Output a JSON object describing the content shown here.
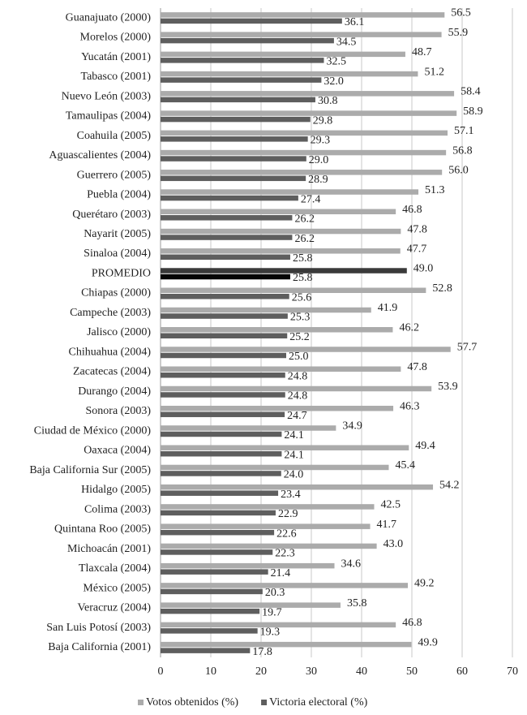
{
  "chart_data": {
    "type": "hbar",
    "categories": [
      "Guanajuato (2000)",
      "Morelos (2000)",
      "Yucatán (2001)",
      "Tabasco (2001)",
      "Nuevo León (2003)",
      "Tamaulipas (2004)",
      "Coahuila (2005)",
      "Aguascalientes (2004)",
      "Guerrero (2005)",
      "Puebla (2004)",
      "Querétaro (2003)",
      "Nayarit (2005)",
      "Sinaloa (2004)",
      "PROMEDIO",
      "Chiapas (2000)",
      "Campeche (2003)",
      "Jalisco (2000)",
      "Chihuahua (2004)",
      "Zacatecas (2004)",
      "Durango (2004)",
      "Sonora (2003)",
      "Ciudad de México (2000)",
      "Oaxaca (2004)",
      "Baja California Sur (2005)",
      "Hidalgo (2005)",
      "Colima (2003)",
      "Quintana Roo (2005)",
      "Michoacán (2001)",
      "Tlaxcala (2004)",
      "México (2005)",
      "Veracruz (2004)",
      "San Luis Potosí (2003)",
      "Baja California (2001)"
    ],
    "series": [
      {
        "name": "Votos obtenidos (%)",
        "color": "#ababab",
        "highlight_color": "#3a3a3a",
        "highlight_index": 13,
        "values": [
          56.5,
          55.9,
          48.7,
          51.2,
          58.4,
          58.9,
          57.1,
          56.8,
          56.0,
          51.3,
          46.8,
          47.8,
          47.7,
          49.0,
          52.8,
          41.9,
          46.2,
          57.7,
          47.8,
          53.9,
          46.3,
          34.9,
          49.4,
          45.4,
          54.2,
          42.5,
          41.7,
          43.0,
          34.6,
          49.2,
          35.8,
          46.8,
          49.9
        ],
        "value_labels": [
          "56.5",
          "55.9",
          "48.7",
          "51.2",
          "58.4",
          "58.9",
          "57.1",
          "56.8",
          "56.0",
          "51.3",
          "46.8",
          "47.8",
          "47.7",
          "49.0",
          "52.8",
          "41.9",
          "46.2",
          "57.7",
          "47.8",
          "53.9",
          "46.3",
          "34.9",
          "49.4",
          "45.4",
          "54.2",
          "42.5",
          "41.7",
          "43.0",
          "34.6",
          "49.2",
          "35.8",
          "46.8",
          "49.9"
        ]
      },
      {
        "name": "Victoria electoral (%)",
        "color": "#5e5e5e",
        "highlight_color": "#050505",
        "highlight_index": 13,
        "values": [
          36.1,
          34.5,
          32.5,
          32.0,
          30.8,
          29.8,
          29.3,
          29.0,
          28.9,
          27.4,
          26.2,
          26.2,
          25.8,
          25.8,
          25.6,
          25.3,
          25.2,
          25.0,
          24.8,
          24.8,
          24.7,
          24.1,
          24.1,
          24.0,
          23.4,
          22.9,
          22.6,
          22.3,
          21.4,
          20.3,
          19.7,
          19.3,
          17.8
        ],
        "value_labels": [
          "36.1",
          "34.5",
          "32.5",
          "32.0",
          "30.8",
          "29.8",
          "29.3",
          "29.0",
          "28.9",
          "27.4",
          "26.2",
          "26.2",
          "25.8",
          "25.8",
          "25.6",
          "25.3",
          "25.2",
          "25.0",
          "24.8",
          "24.8",
          "24.7",
          "24.1",
          "24.1",
          "24.0",
          "23.4",
          "22.9",
          "22.6",
          "22.3",
          "21.4",
          "20.3",
          "19.7",
          "19.3",
          "17.8"
        ]
      }
    ],
    "xlim": [
      0,
      70
    ],
    "xticks": [
      0,
      10,
      20,
      30,
      40,
      50,
      60,
      70
    ],
    "grid": true,
    "legend": "bottom"
  }
}
